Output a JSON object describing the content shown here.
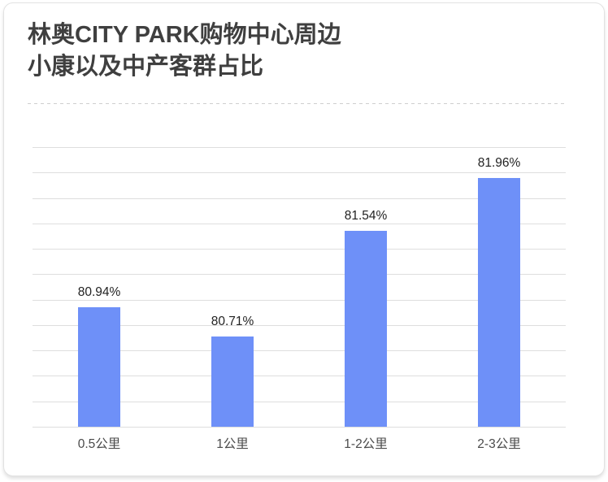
{
  "card": {
    "title_line1": "林奥CITY PARK购物中心周边",
    "title_line2": "小康以及中产客群占比"
  },
  "chart_data": {
    "type": "bar",
    "title": "林奥CITY PARK购物中心周边小康以及中产客群占比",
    "categories": [
      "0.5公里",
      "1公里",
      "1-2公里",
      "2-3公里"
    ],
    "values": [
      80.94,
      80.71,
      81.54,
      81.96
    ],
    "value_labels": [
      "80.94%",
      "80.71%",
      "81.54%",
      "81.96%"
    ],
    "xlabel": "",
    "ylabel": "",
    "ylim": [
      80.0,
      82.2
    ],
    "y_gridline_step": 0.2,
    "grid": true,
    "legend_position": "none",
    "y_axis_tick_labels_visible": false,
    "bar_color": "#6E90F8",
    "gridline_color": "#DEDEDE"
  }
}
